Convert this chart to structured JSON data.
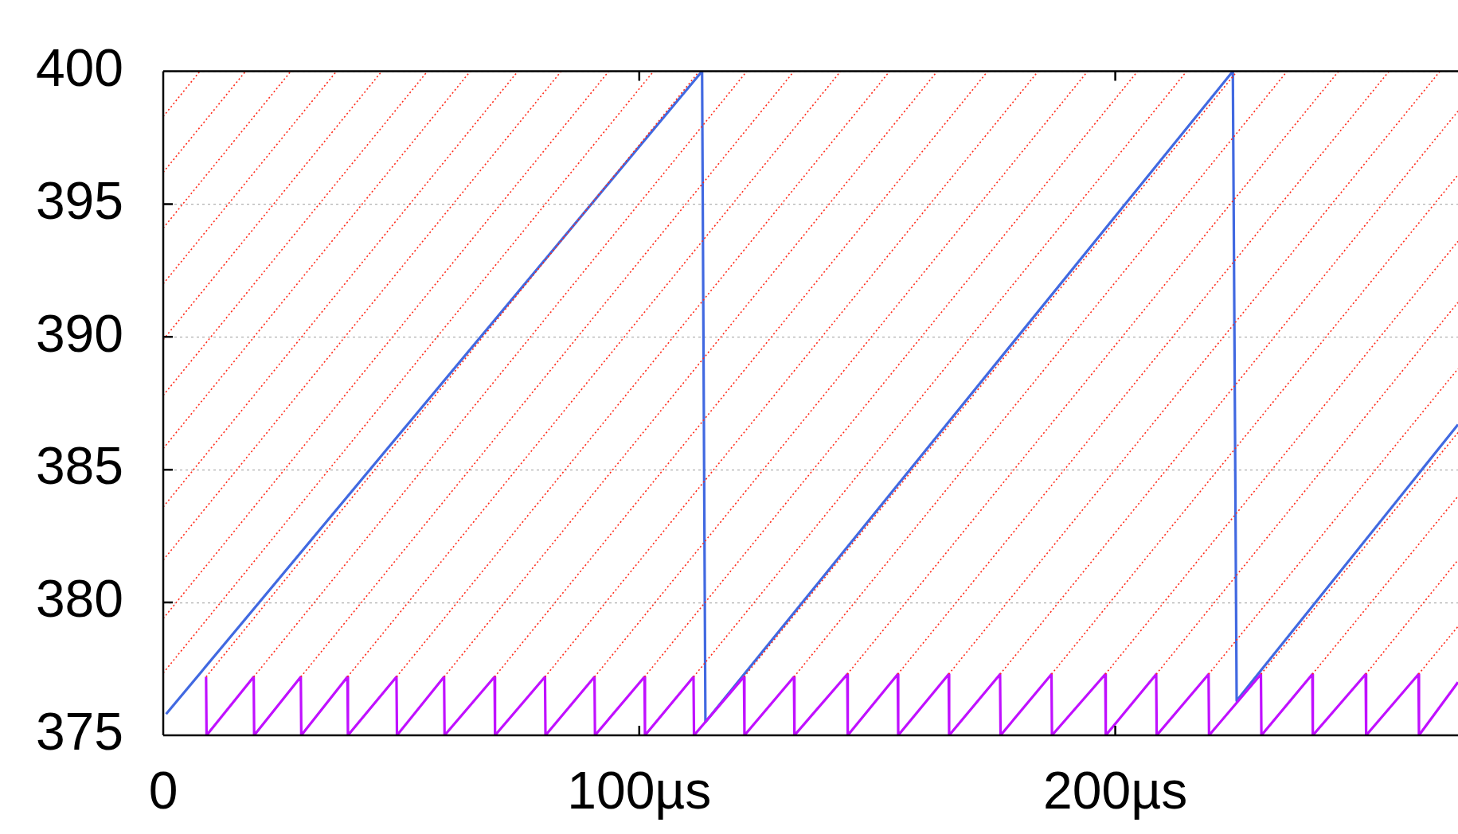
{
  "chart_data": {
    "type": "line",
    "xlim": [
      0,
      272
    ],
    "ylim": [
      375,
      400
    ],
    "xticks": [
      0,
      {
        "value": 100,
        "label": "100µs"
      },
      {
        "value": 200,
        "label": "200µs"
      }
    ],
    "yticks": [
      375,
      380,
      385,
      390,
      395,
      400
    ],
    "grid": "y",
    "legend": false,
    "marker": "none",
    "series": [
      {
        "color": "#ff2a1a",
        "line_style": "dotted",
        "x": [
          0,
          7.7,
          null,
          0,
          17.3,
          null,
          0,
          26.8,
          null,
          0,
          36.4,
          null,
          0,
          45.9,
          null,
          0,
          55.5,
          null,
          0,
          64.5,
          null,
          0,
          74.5,
          null,
          0,
          83.6,
          null,
          0,
          93.6,
          null,
          0,
          103.0,
          null,
          9.0,
          112.6,
          null,
          19.0,
          122.6,
          null,
          28.9,
          132.5,
          null,
          38.7,
          142.3,
          null,
          49.0,
          152.6,
          null,
          59.0,
          162.6,
          null,
          69.6,
          173.2,
          null,
          80.2,
          183.8,
          null,
          90.6,
          194.2,
          null,
          101.1,
          204.7,
          null,
          111.4,
          215.0,
          null,
          122.0,
          225.6,
          null,
          132.5,
          236.1,
          null,
          143.7,
          246.9,
          null,
          154.3,
          257.5,
          null,
          165.0,
          268.2,
          null,
          175.8,
          272,
          null,
          186.6,
          272,
          null,
          197.9,
          272,
          null,
          208.6,
          272,
          null,
          219.6,
          272,
          null,
          230.6,
          272,
          null,
          241.4,
          272,
          null,
          252.6,
          272,
          null,
          263.7,
          272
        ],
        "values": [
          398.3,
          400,
          null,
          396.2,
          400,
          null,
          394.1,
          400,
          null,
          392.0,
          400,
          null,
          389.9,
          400,
          null,
          387.8,
          400,
          null,
          385.8,
          400,
          null,
          383.6,
          400,
          null,
          381.6,
          400,
          null,
          379.4,
          400,
          null,
          377.35,
          400,
          null,
          377.2,
          400,
          null,
          377.2,
          400,
          null,
          377.2,
          400,
          null,
          377.2,
          400,
          null,
          377.2,
          400,
          null,
          377.2,
          400,
          null,
          377.2,
          400,
          null,
          377.2,
          400,
          null,
          377.2,
          400,
          null,
          377.2,
          400,
          null,
          377.2,
          400,
          null,
          377.2,
          400,
          null,
          377.2,
          400,
          null,
          377.3,
          400,
          null,
          377.3,
          400,
          null,
          377.3,
          400,
          null,
          377.3,
          398.5,
          null,
          377.3,
          396.1,
          null,
          377.3,
          393.6,
          null,
          377.3,
          391.3,
          null,
          377.3,
          388.8,
          null,
          377.3,
          386.4,
          null,
          377.3,
          384.0,
          null,
          377.3,
          381.6,
          null,
          377.3,
          379.1
        ]
      },
      {
        "color": "#c010ff",
        "line_style": "solid",
        "x": [
          9.0,
          9.1,
          19.0,
          19.1,
          28.9,
          29.0,
          38.7,
          38.8,
          49.0,
          49.1,
          59.0,
          59.1,
          69.6,
          69.7,
          80.2,
          80.3,
          90.6,
          90.7,
          101.1,
          101.2,
          111.4,
          111.5,
          122.0,
          122.1,
          132.5,
          132.6,
          143.7,
          143.8,
          154.3,
          154.4,
          165.0,
          165.1,
          175.8,
          175.9,
          186.6,
          186.7,
          197.9,
          198.0,
          208.6,
          208.7,
          219.6,
          219.7,
          230.6,
          230.7,
          241.4,
          241.5,
          252.6,
          252.7,
          263.7,
          263.8,
          272
        ],
        "values": [
          377.2,
          375,
          377.2,
          375,
          377.2,
          375,
          377.2,
          375,
          377.2,
          375,
          377.2,
          375,
          377.2,
          375,
          377.2,
          375,
          377.2,
          375,
          377.2,
          375,
          377.2,
          375,
          377.2,
          375,
          377.2,
          375,
          377.3,
          375,
          377.3,
          375,
          377.3,
          375,
          377.3,
          375,
          377.3,
          375,
          377.3,
          375,
          377.3,
          375,
          377.3,
          375,
          377.3,
          375,
          377.3,
          375,
          377.3,
          375,
          377.3,
          375,
          377.0
        ]
      },
      {
        "color": "#4169e1",
        "line_style": "solid",
        "x": [
          0.6,
          113.2,
          113.9,
          224.7,
          225.5,
          272
        ],
        "values": [
          375.8,
          400,
          375.5,
          400,
          376.3,
          386.7
        ]
      }
    ]
  }
}
